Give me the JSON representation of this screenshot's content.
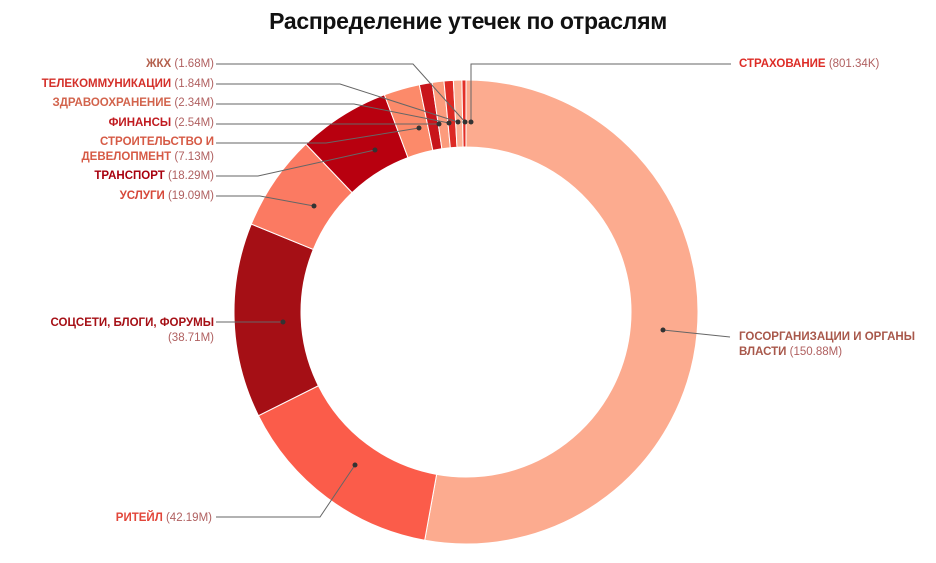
{
  "chart_data": {
    "type": "pie",
    "subtype": "donut",
    "title": "Распределение утечек по отраслям",
    "unit": "records",
    "slices": [
      {
        "label": "ГОСОРГАНИЗАЦИИ И ОРГАНЫ ВЛАСТИ",
        "value_text": "150.88M",
        "value": 150.88,
        "color": "#fcab8f"
      },
      {
        "label": "РИТЕЙЛ",
        "value_text": "42.19M",
        "value": 42.19,
        "color": "#fb5c4a"
      },
      {
        "label": "СОЦСЕТИ, БЛОГИ, ФОРУМЫ",
        "value_text": "38.71M",
        "value": 38.71,
        "color": "#a50f15"
      },
      {
        "label": "УСЛУГИ",
        "value_text": "19.09M",
        "value": 19.09,
        "color": "#fb7a62"
      },
      {
        "label": "ТРАНСПОРТ",
        "value_text": "18.29M",
        "value": 18.29,
        "color": "#b8000f"
      },
      {
        "label": "СТРОИТЕЛЬСТВО И ДЕВЕЛОПМЕНТ",
        "value_text": "7.13M",
        "value": 7.13,
        "color": "#fc8a6a"
      },
      {
        "label": "ФИНАНСЫ",
        "value_text": "2.54M",
        "value": 2.54,
        "color": "#c8151b"
      },
      {
        "label": "ЗДРАВООХРАНЕНИЕ",
        "value_text": "2.34M",
        "value": 2.34,
        "color": "#fc9b7c"
      },
      {
        "label": "ТЕЛЕКОММУНИКАЦИИ",
        "value_text": "1.84M",
        "value": 1.84,
        "color": "#dc2a25"
      },
      {
        "label": "ЖКХ",
        "value_text": "1.68M",
        "value": 1.68,
        "color": "#fcb094"
      },
      {
        "label": "СТРАХОВАНИЕ",
        "value_text": "801.34K",
        "value": 0.80134,
        "color": "#e32f27"
      }
    ],
    "legend_position": "callout labels"
  },
  "labels": {
    "gos": {
      "name": "ГОСОРГАНИЗАЦИИ И ОРГАНЫ",
      "name2": "ВЛАСТИ",
      "value": "(150.88M)"
    },
    "retail": {
      "name": "РИТЕЙЛ",
      "value": "(42.19M)"
    },
    "social": {
      "name": "СОЦСЕТИ, БЛОГИ, ФОРУМЫ",
      "value": "(38.71M)"
    },
    "services": {
      "name": "УСЛУГИ",
      "value": "(19.09M)"
    },
    "transport": {
      "name": "ТРАНСПОРТ",
      "value": "(18.29M)"
    },
    "construction": {
      "name": "СТРОИТЕЛЬСТВО И",
      "name2": "ДЕВЕЛОПМЕНТ",
      "value": "(7.13M)"
    },
    "finance": {
      "name": "ФИНАНСЫ",
      "value": "(2.54M)"
    },
    "health": {
      "name": "ЗДРАВООХРАНЕНИЕ",
      "value": "(2.34M)"
    },
    "telecom": {
      "name": "ТЕЛЕКОММУНИКАЦИИ",
      "value": "(1.84M)"
    },
    "zhkh": {
      "name": "ЖКХ",
      "value": "(1.68M)"
    },
    "insurance": {
      "name": "СТРАХОВАНИЕ",
      "value": "(801.34K)"
    }
  }
}
